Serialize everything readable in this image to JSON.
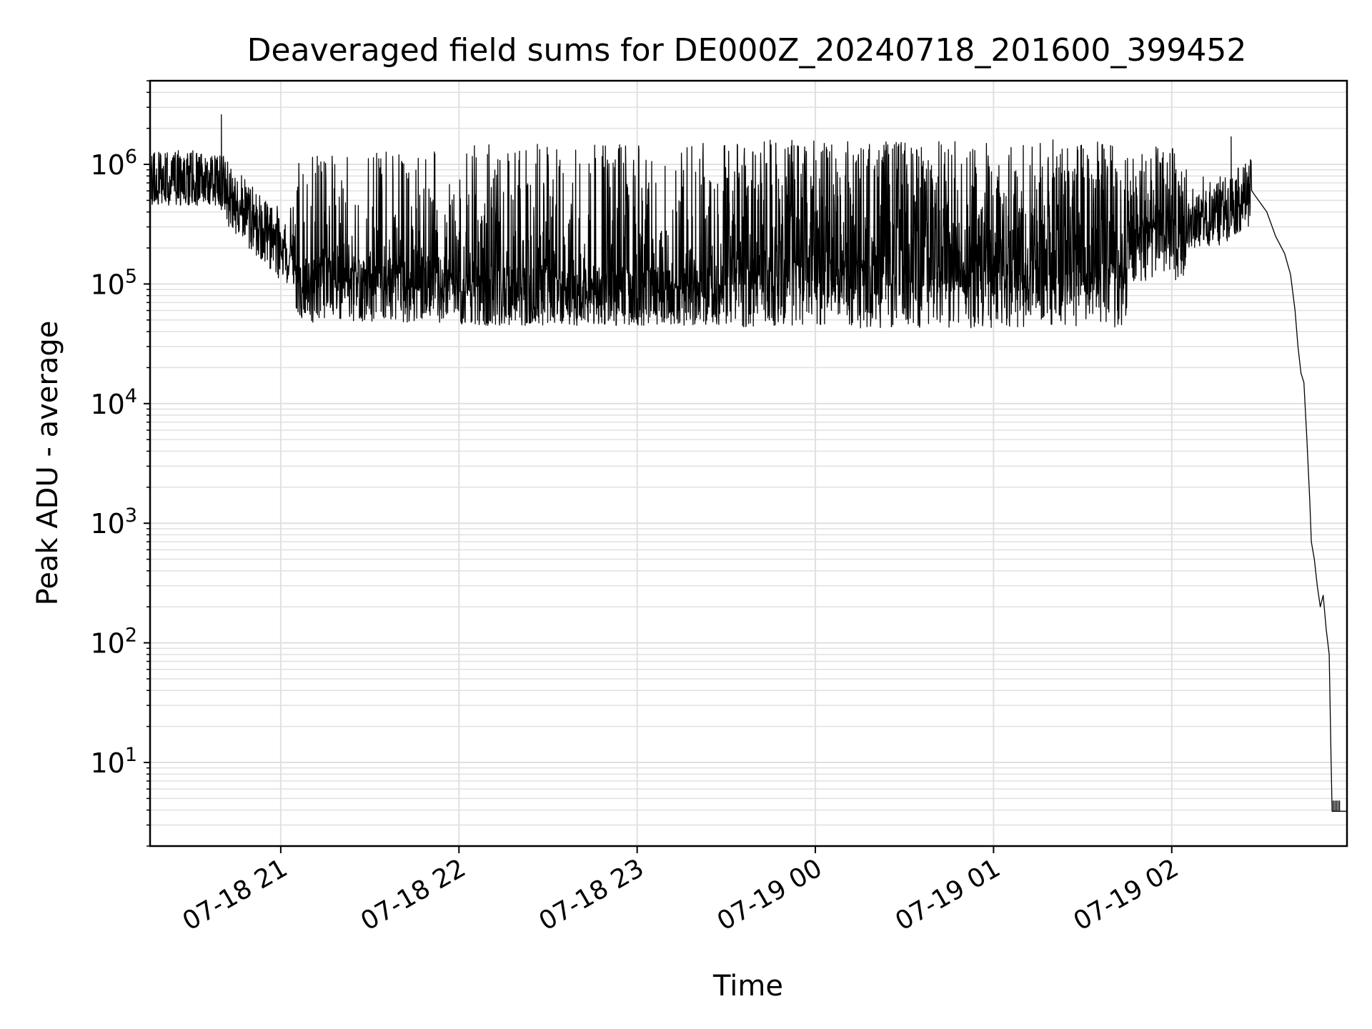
{
  "chart_data": {
    "type": "line",
    "title": "Deaveraged field sums for DE000Z_20240718_201600_399452",
    "xlabel": "Time",
    "ylabel": "Peak ADU - average",
    "y_scale": "log",
    "ylim": [
      2,
      5000000
    ],
    "xlim": [
      "2024-07-18 20:16:00",
      "2024-07-19 02:59:00"
    ],
    "grid": true,
    "legend": "none",
    "line_color": "#000000",
    "grid_color": "#e0e0e0",
    "x_ticks": [
      {
        "t": "2024-07-18 21:00:00",
        "label": "07-18 21"
      },
      {
        "t": "2024-07-18 22:00:00",
        "label": "07-18 22"
      },
      {
        "t": "2024-07-18 23:00:00",
        "label": "07-18 23"
      },
      {
        "t": "2024-07-19 00:00:00",
        "label": "07-19 00"
      },
      {
        "t": "2024-07-19 01:00:00",
        "label": "07-19 01"
      },
      {
        "t": "2024-07-19 02:00:00",
        "label": "07-19 02"
      }
    ],
    "y_ticks": [
      {
        "value": 10,
        "base": "10",
        "exp": "1"
      },
      {
        "value": 100,
        "base": "10",
        "exp": "2"
      },
      {
        "value": 1000,
        "base": "10",
        "exp": "3"
      },
      {
        "value": 10000,
        "base": "10",
        "exp": "4"
      },
      {
        "value": 100000,
        "base": "10",
        "exp": "5"
      },
      {
        "value": 1000000,
        "base": "10",
        "exp": "6"
      }
    ],
    "series": [
      {
        "style": "noisy baseline with frequent upward spikes",
        "segments": [
          {
            "start": "2024-07-18 20:16:00",
            "end": "2024-07-18 20:40:00",
            "baseline": 700000,
            "low": 450000,
            "spike_max": 1200000,
            "spike_rate": 0.15
          },
          {
            "start": "2024-07-18 20:40:00",
            "end": "2024-07-18 21:05:00",
            "baseline_from": 650000,
            "baseline_to": 150000,
            "low": 100000,
            "spike_max": 500000,
            "spike_rate": 0.15
          },
          {
            "start": "2024-07-18 21:05:00",
            "end": "2024-07-18 22:00:00",
            "baseline": 90000,
            "low": 45000,
            "spike_max": 1300000,
            "spike_rate": 0.3
          },
          {
            "start": "2024-07-18 22:00:00",
            "end": "2024-07-18 23:30:00",
            "baseline": 75000,
            "low": 45000,
            "spike_max": 1500000,
            "spike_rate": 0.35
          },
          {
            "start": "2024-07-18 23:30:00",
            "end": "2024-07-19 01:45:00",
            "baseline": 80000,
            "low": 40000,
            "spike_max": 1600000,
            "spike_rate": 0.6
          },
          {
            "start": "2024-07-19 01:45:00",
            "end": "2024-07-19 02:05:00",
            "baseline": 200000,
            "low": 60000,
            "spike_max": 1400000,
            "spike_rate": 0.4
          },
          {
            "start": "2024-07-19 02:05:00",
            "end": "2024-07-19 02:27:00",
            "baseline_from": 250000,
            "baseline_to": 600000,
            "low": 200000,
            "spike_max": 800000,
            "spike_rate": 0.1
          }
        ],
        "points": [
          {
            "t": "2024-07-18 20:40:00",
            "v": 2600000
          },
          {
            "t": "2024-07-19 02:20:00",
            "v": 1700000
          },
          {
            "t": "2024-07-19 02:28:00",
            "v": 550000
          },
          {
            "t": "2024-07-19 02:32:00",
            "v": 400000
          },
          {
            "t": "2024-07-19 02:35:00",
            "v": 250000
          },
          {
            "t": "2024-07-19 02:38:00",
            "v": 180000
          },
          {
            "t": "2024-07-19 02:40:00",
            "v": 120000
          },
          {
            "t": "2024-07-19 02:41:30",
            "v": 60000
          },
          {
            "t": "2024-07-19 02:42:30",
            "v": 30000
          },
          {
            "t": "2024-07-19 02:43:30",
            "v": 18000
          },
          {
            "t": "2024-07-19 02:44:30",
            "v": 15000
          },
          {
            "t": "2024-07-19 02:45:30",
            "v": 5000
          },
          {
            "t": "2024-07-19 02:46:30",
            "v": 1500
          },
          {
            "t": "2024-07-19 02:47:00",
            "v": 700
          },
          {
            "t": "2024-07-19 02:48:00",
            "v": 500
          },
          {
            "t": "2024-07-19 02:49:00",
            "v": 300
          },
          {
            "t": "2024-07-19 02:50:00",
            "v": 200
          },
          {
            "t": "2024-07-19 02:51:00",
            "v": 250
          },
          {
            "t": "2024-07-19 02:52:00",
            "v": 130
          },
          {
            "t": "2024-07-19 02:53:00",
            "v": 80
          },
          {
            "t": "2024-07-19 02:53:40",
            "v": 10
          },
          {
            "t": "2024-07-19 02:54:00",
            "v": 3.9
          },
          {
            "t": "2024-07-19 02:59:00",
            "v": 3.9
          }
        ]
      }
    ]
  }
}
